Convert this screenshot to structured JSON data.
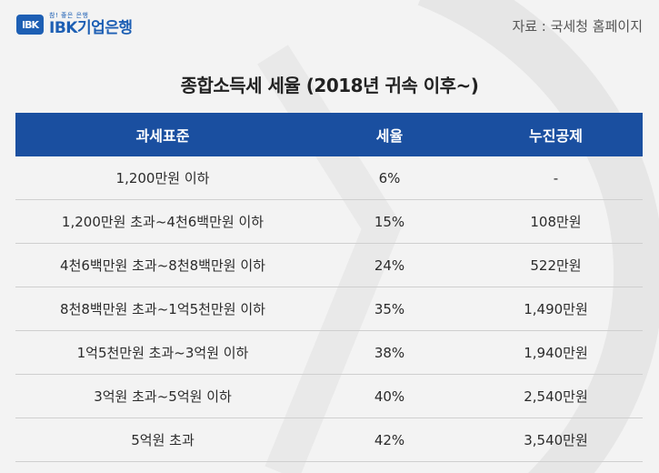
{
  "logo": {
    "mark": "IBK",
    "tagline": "참! 좋은 은행",
    "name": "IBK기업은행"
  },
  "source": "자료 : 국세청 홈페이지",
  "title": "종합소득세 세율 (2018년 귀속 이후~)",
  "table": {
    "headers": [
      "과세표준",
      "세율",
      "누진공제"
    ],
    "rows": [
      [
        "1,200만원 이하",
        "6%",
        "-"
      ],
      [
        "1,200만원 초과~4천6백만원 이하",
        "15%",
        "108만원"
      ],
      [
        "4천6백만원 초과~8천8백만원 이하",
        "24%",
        "522만원"
      ],
      [
        "8천8백만원 초과~1억5천만원 이하",
        "35%",
        "1,490만원"
      ],
      [
        "1억5천만원 초과~3억원 이하",
        "38%",
        "1,940만원"
      ],
      [
        "3억원 초과~5억원 이하",
        "40%",
        "2,540만원"
      ],
      [
        "5억원 초과",
        "42%",
        "3,540만원"
      ]
    ]
  },
  "colors": {
    "brand": "#1d5fb4",
    "header_bg": "#1a4fa0",
    "page_bg": "#f3f3f3"
  }
}
